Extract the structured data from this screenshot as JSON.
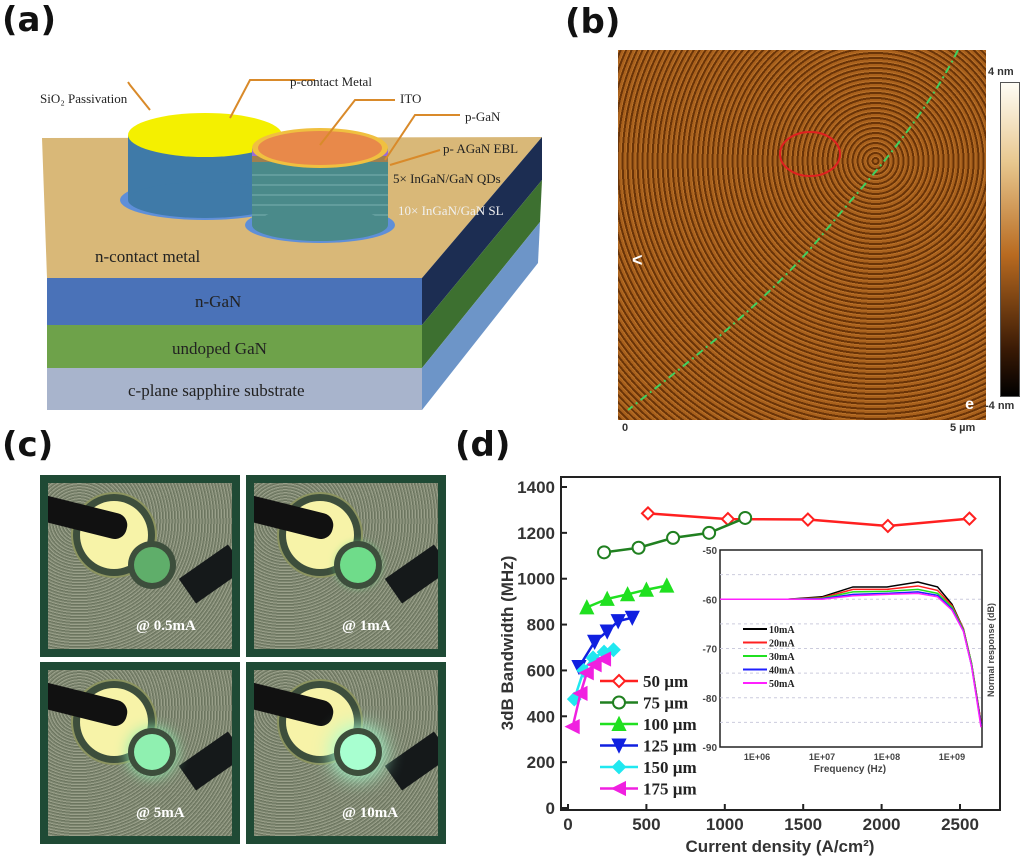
{
  "panels": {
    "a": "(a)",
    "b": "(b)",
    "c": "(c)",
    "d": "(d)"
  },
  "diagram": {
    "labels": [
      "SiO₂ Passivation",
      "p-contact Metal",
      "ITO",
      "p-GaN",
      "p- AGaN EBL",
      "5× InGaN/GaN QDs",
      "10× InGaN/GaN SL",
      "n-contact metal",
      "n-GaN",
      "undoped GaN",
      "c-plane sapphire substrate"
    ],
    "colors": {
      "top": "#d9b878",
      "ngan": "#4a72b8",
      "undoped": "#6ea24a",
      "sapphire": "#a8b4cc",
      "pcontact": "#f4f000",
      "ito": "#e8894a",
      "arrow": "#d98a2a"
    }
  },
  "afm": {
    "scale_top": "4 nm",
    "scale_bottom": "-4 nm",
    "x_start": "0",
    "x_end": "5 µm",
    "corner_letter": "e",
    "marker": "<"
  },
  "photos": [
    {
      "caption": "@ 0.5mA",
      "glow": "#5fae6a"
    },
    {
      "caption": "@ 1mA",
      "glow": "#6fdc8a"
    },
    {
      "caption": "@ 5mA",
      "glow": "#8ff0b0"
    },
    {
      "caption": "@ 10mA",
      "glow": "#a8ffd0"
    }
  ],
  "chart_data": {
    "type": "line",
    "xlabel": "Current density (A/cm²)",
    "ylabel": "3dB Bandwidth (MHz)",
    "xlim": [
      -50,
      2850
    ],
    "ylim": [
      0,
      1400
    ],
    "xticks": [
      0,
      500,
      1000,
      1500,
      2000,
      2500
    ],
    "yticks": [
      0,
      200,
      400,
      600,
      800,
      1000,
      1200,
      1400
    ],
    "legend_position": "lower-left",
    "series": [
      {
        "name": "50 µm",
        "color": "#ff2020",
        "marker": "diamond-open",
        "points": [
          [
            510,
            1285
          ],
          [
            1020,
            1260
          ],
          [
            1530,
            1258
          ],
          [
            2040,
            1230
          ],
          [
            2560,
            1262
          ]
        ]
      },
      {
        "name": "75 µm",
        "color": "#208020",
        "marker": "circle-open",
        "points": [
          [
            230,
            1115
          ],
          [
            450,
            1135
          ],
          [
            670,
            1178
          ],
          [
            900,
            1200
          ],
          [
            1130,
            1265
          ]
        ]
      },
      {
        "name": "100 µm",
        "color": "#20e020",
        "marker": "triangle-up",
        "points": [
          [
            120,
            875
          ],
          [
            250,
            912
          ],
          [
            380,
            932
          ],
          [
            500,
            952
          ],
          [
            630,
            970
          ]
        ]
      },
      {
        "name": "125 µm",
        "color": "#1020e0",
        "marker": "triangle-down",
        "points": [
          [
            70,
            615
          ],
          [
            170,
            725
          ],
          [
            250,
            770
          ],
          [
            320,
            815
          ],
          [
            410,
            830
          ]
        ]
      },
      {
        "name": "150 µm",
        "color": "#20e8f0",
        "marker": "diamond",
        "points": [
          [
            40,
            475
          ],
          [
            100,
            600
          ],
          [
            160,
            655
          ],
          [
            230,
            680
          ],
          [
            290,
            690
          ]
        ]
      },
      {
        "name": "175 µm",
        "color": "#f020e0",
        "marker": "triangle-left",
        "points": [
          [
            30,
            355
          ],
          [
            80,
            500
          ],
          [
            120,
            590
          ],
          [
            170,
            625
          ],
          [
            230,
            650
          ]
        ]
      }
    ],
    "inset": {
      "type": "line",
      "xscale": "log",
      "xlabel": "Frequency (Hz)",
      "ylabel": "Normal response (dB)",
      "xlim": [
        270000,
        2900000000
      ],
      "ylim": [
        -90,
        -50
      ],
      "xticks": [
        "1E+06",
        "1E+07",
        "1E+08",
        "1E+09"
      ],
      "yticks": [
        -50,
        -60,
        -70,
        -80,
        -90
      ],
      "x": [
        270000,
        1000000,
        3000000,
        10000000,
        30000000,
        100000000,
        300000000,
        600000000,
        1000000000,
        1500000000,
        2000000000,
        2800000000
      ],
      "series": [
        {
          "name": "10mA",
          "color": "#000000",
          "values": [
            -60,
            -60,
            -60,
            -59.5,
            -57.5,
            -57.5,
            -56.5,
            -57.5,
            -61,
            -66,
            -73,
            -85
          ]
        },
        {
          "name": "20mA",
          "color": "#ff2020",
          "values": [
            -60,
            -60,
            -60,
            -59.7,
            -58,
            -58,
            -57.3,
            -58.2,
            -61.3,
            -66,
            -73,
            -85
          ]
        },
        {
          "name": "30mA",
          "color": "#20e020",
          "values": [
            -60,
            -60,
            -60,
            -59.8,
            -58.5,
            -58.4,
            -58,
            -58.8,
            -61.6,
            -66.2,
            -73,
            -85.5
          ]
        },
        {
          "name": "40mA",
          "color": "#2020ff",
          "values": [
            -60,
            -60,
            -60,
            -59.9,
            -59,
            -58.8,
            -58.5,
            -59.2,
            -62,
            -66.4,
            -73.5,
            -85.5
          ]
        },
        {
          "name": "50mA",
          "color": "#ff20ff",
          "values": [
            -60,
            -60,
            -60,
            -60,
            -59.3,
            -59,
            -58.8,
            -59.5,
            -62.2,
            -66.5,
            -73.5,
            -86
          ]
        }
      ]
    }
  }
}
